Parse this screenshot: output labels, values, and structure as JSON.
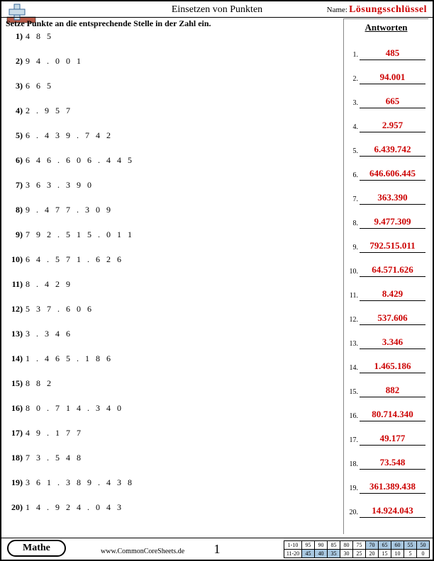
{
  "header": {
    "title": "Einsetzen von Punkten",
    "name_label": "Name:",
    "key_label": "Lösungsschlüssel"
  },
  "instruction": "Setze Punkte an die entsprechende Stelle in der Zahl ein.",
  "answers_title": "Antworten",
  "problems": [
    {
      "n": "1)",
      "digits": "4 8 5"
    },
    {
      "n": "2)",
      "digits": "9 4 . 0 0 1"
    },
    {
      "n": "3)",
      "digits": "6 6 5"
    },
    {
      "n": "4)",
      "digits": "2 . 9 5 7"
    },
    {
      "n": "5)",
      "digits": "6 . 4 3 9 . 7 4 2"
    },
    {
      "n": "6)",
      "digits": "6 4 6 . 6 0 6 . 4 4 5"
    },
    {
      "n": "7)",
      "digits": "3 6 3 . 3 9 0"
    },
    {
      "n": "8)",
      "digits": "9 . 4 7 7 . 3 0 9"
    },
    {
      "n": "9)",
      "digits": "7 9 2 . 5 1 5 . 0 1 1"
    },
    {
      "n": "10)",
      "digits": "6 4 . 5 7 1 . 6 2 6"
    },
    {
      "n": "11)",
      "digits": "8 . 4 2 9"
    },
    {
      "n": "12)",
      "digits": "5 3 7 . 6 0 6"
    },
    {
      "n": "13)",
      "digits": "3 . 3 4 6"
    },
    {
      "n": "14)",
      "digits": "1 . 4 6 5 . 1 8 6"
    },
    {
      "n": "15)",
      "digits": "8 8 2"
    },
    {
      "n": "16)",
      "digits": "8 0 . 7 1 4 . 3 4 0"
    },
    {
      "n": "17)",
      "digits": "4 9 . 1 7 7"
    },
    {
      "n": "18)",
      "digits": "7 3 . 5 4 8"
    },
    {
      "n": "19)",
      "digits": "3 6 1 . 3 8 9 . 4 3 8"
    },
    {
      "n": "20)",
      "digits": "1 4 . 9 2 4 . 0 4 3"
    }
  ],
  "answers": [
    {
      "n": "1.",
      "val": "485"
    },
    {
      "n": "2.",
      "val": "94.001"
    },
    {
      "n": "3.",
      "val": "665"
    },
    {
      "n": "4.",
      "val": "2.957"
    },
    {
      "n": "5.",
      "val": "6.439.742"
    },
    {
      "n": "6.",
      "val": "646.606.445"
    },
    {
      "n": "7.",
      "val": "363.390"
    },
    {
      "n": "8.",
      "val": "9.477.309"
    },
    {
      "n": "9.",
      "val": "792.515.011"
    },
    {
      "n": "10.",
      "val": "64.571.626"
    },
    {
      "n": "11.",
      "val": "8.429"
    },
    {
      "n": "12.",
      "val": "537.606"
    },
    {
      "n": "13.",
      "val": "3.346"
    },
    {
      "n": "14.",
      "val": "1.465.186"
    },
    {
      "n": "15.",
      "val": "882"
    },
    {
      "n": "16.",
      "val": "80.714.340"
    },
    {
      "n": "17.",
      "val": "49.177"
    },
    {
      "n": "18.",
      "val": "73.548"
    },
    {
      "n": "19.",
      "val": "361.389.438"
    },
    {
      "n": "20.",
      "val": "14.924.043"
    }
  ],
  "footer": {
    "subject": "Mathe",
    "website": "www.CommonCoreSheets.de",
    "page": "1"
  },
  "score": {
    "row1_label": "1-10",
    "row2_label": "11-20",
    "row1": [
      "95",
      "90",
      "85",
      "80",
      "75",
      "70",
      "65",
      "60",
      "55",
      "50"
    ],
    "row2": [
      "45",
      "40",
      "35",
      "30",
      "25",
      "20",
      "15",
      "10",
      "5",
      "0"
    ],
    "hi1": [
      5,
      6,
      7,
      8,
      9
    ],
    "hi2": [
      0,
      1,
      2
    ]
  },
  "colors": {
    "answer_red": "#cc0000",
    "score_highlight": "#a8c7e0"
  }
}
